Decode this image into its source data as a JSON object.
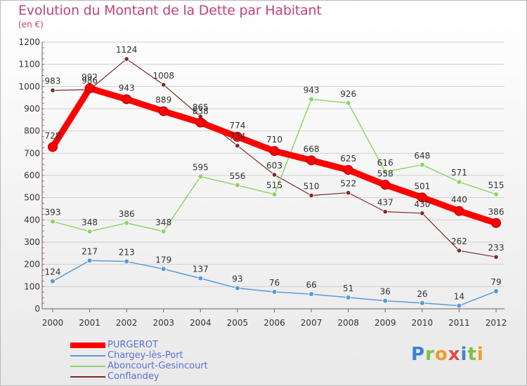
{
  "header": {
    "title": "Evolution du Montant de la Dette par Habitant",
    "unit": "(en €)"
  },
  "logo": {
    "letters": [
      "P",
      "r",
      "o",
      "x",
      "i",
      "t",
      "i"
    ],
    "colors": [
      "#3b82d8",
      "#7cc142",
      "#f29b22",
      "#e34a4a",
      "#3b82d8",
      "#7cc142",
      "#f29b22"
    ]
  },
  "chart_data": {
    "type": "line",
    "title": "Evolution du Montant de la Dette par Habitant",
    "ylabel": "(en €)",
    "xlabel": "",
    "ylim": [
      0,
      1200
    ],
    "yticks": [
      0,
      100,
      200,
      300,
      400,
      500,
      600,
      700,
      800,
      900,
      1000,
      1100,
      1200
    ],
    "grid": true,
    "categories": [
      "2000",
      "2001",
      "2002",
      "2003",
      "2004",
      "2005",
      "2006",
      "2007",
      "2008",
      "2009",
      "2010",
      "2011",
      "2012"
    ],
    "series": [
      {
        "name": "PURGEROT",
        "color": "#ff0000",
        "values": [
          728,
          992,
          943,
          889,
          838,
          774,
          710,
          668,
          625,
          558,
          501,
          440,
          386
        ],
        "labels": [
          "728",
          "992",
          "943",
          "889",
          "838",
          "774",
          "710",
          "668",
          "625",
          "558",
          "501",
          "440",
          "386"
        ]
      },
      {
        "name": "Chargey-lès-Port",
        "color": "#5b9bd5",
        "values": [
          124,
          217,
          213,
          179,
          137,
          93,
          76,
          66,
          51,
          36,
          26,
          14,
          79
        ],
        "labels": [
          "124",
          "217",
          "213",
          "179",
          "137",
          "93",
          "76",
          "66",
          "51",
          "36",
          "26",
          "14",
          "79"
        ]
      },
      {
        "name": "Aboncourt-Gesincourt",
        "color": "#8fd46a",
        "values": [
          393,
          348,
          386,
          348,
          595,
          556,
          515,
          943,
          926,
          616,
          648,
          571,
          515
        ],
        "labels": [
          "393",
          "348",
          "386",
          "348",
          "595",
          "556",
          "515",
          "943",
          "926",
          "616",
          "648",
          "571",
          "515"
        ]
      },
      {
        "name": "Conflandey",
        "color": "#7a2a2a",
        "values": [
          983,
          986,
          1124,
          1008,
          865,
          734,
          603,
          510,
          522,
          437,
          430,
          262,
          233
        ],
        "labels": [
          "983",
          "986",
          "1124",
          "1008",
          "865",
          "734",
          "603",
          "510",
          "522",
          "437",
          "430",
          "262",
          "233"
        ]
      }
    ]
  }
}
